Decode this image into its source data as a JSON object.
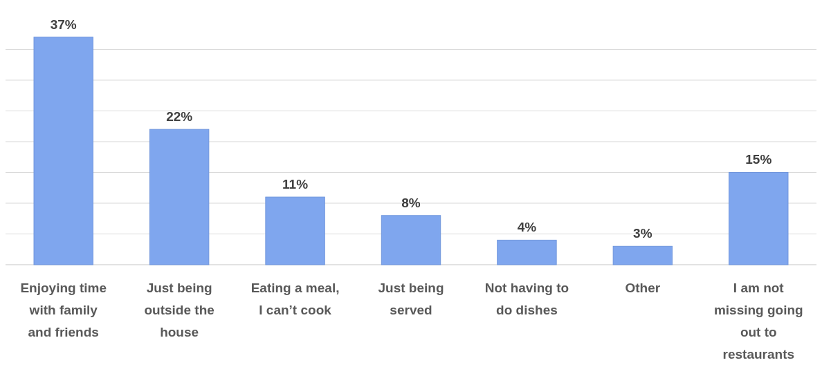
{
  "chart_data": {
    "type": "bar",
    "categories": [
      "Enjoying time with family and friends",
      "Just being outside the house",
      "Eating a meal, I can’t cook",
      "Just being served",
      "Not having to do dishes",
      "Other",
      "I am not missing going out to restaurants"
    ],
    "values": [
      37,
      22,
      11,
      8,
      4,
      3,
      15
    ],
    "color": "#7fa6ee",
    "value_labels": [
      "37%",
      "22%",
      "11%",
      "8%",
      "4%",
      "3%",
      "15%"
    ],
    "grid": "y",
    "tick_labels": "x"
  }
}
